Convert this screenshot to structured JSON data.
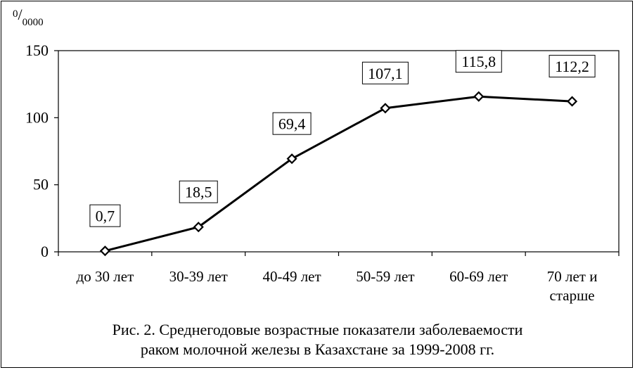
{
  "chart_data": {
    "type": "line",
    "unit_label": {
      "sup": "0",
      "sub": "0000"
    },
    "categories": [
      [
        "до 30 лет"
      ],
      [
        "30-39 лет"
      ],
      [
        "40-49 лет"
      ],
      [
        "50-59 лет"
      ],
      [
        "60-69 лет"
      ],
      [
        "70 лет и",
        "старше"
      ]
    ],
    "values": [
      0.7,
      18.5,
      69.4,
      107.1,
      115.8,
      112.2
    ],
    "data_labels": [
      "0,7",
      "18,5",
      "69,4",
      "107,1",
      "115,8",
      "112,2"
    ],
    "yticks": [
      0,
      50,
      100,
      150
    ],
    "ylim": [
      0,
      150
    ],
    "grid": false,
    "legend": "none",
    "line_color": "#000000",
    "marker": "diamond-open"
  },
  "caption": {
    "line1": "Рис. 2. Среднегодовые возрастные показатели заболеваемости",
    "line2": "раком молочной железы в Казахстане за 1999-2008 гг."
  }
}
